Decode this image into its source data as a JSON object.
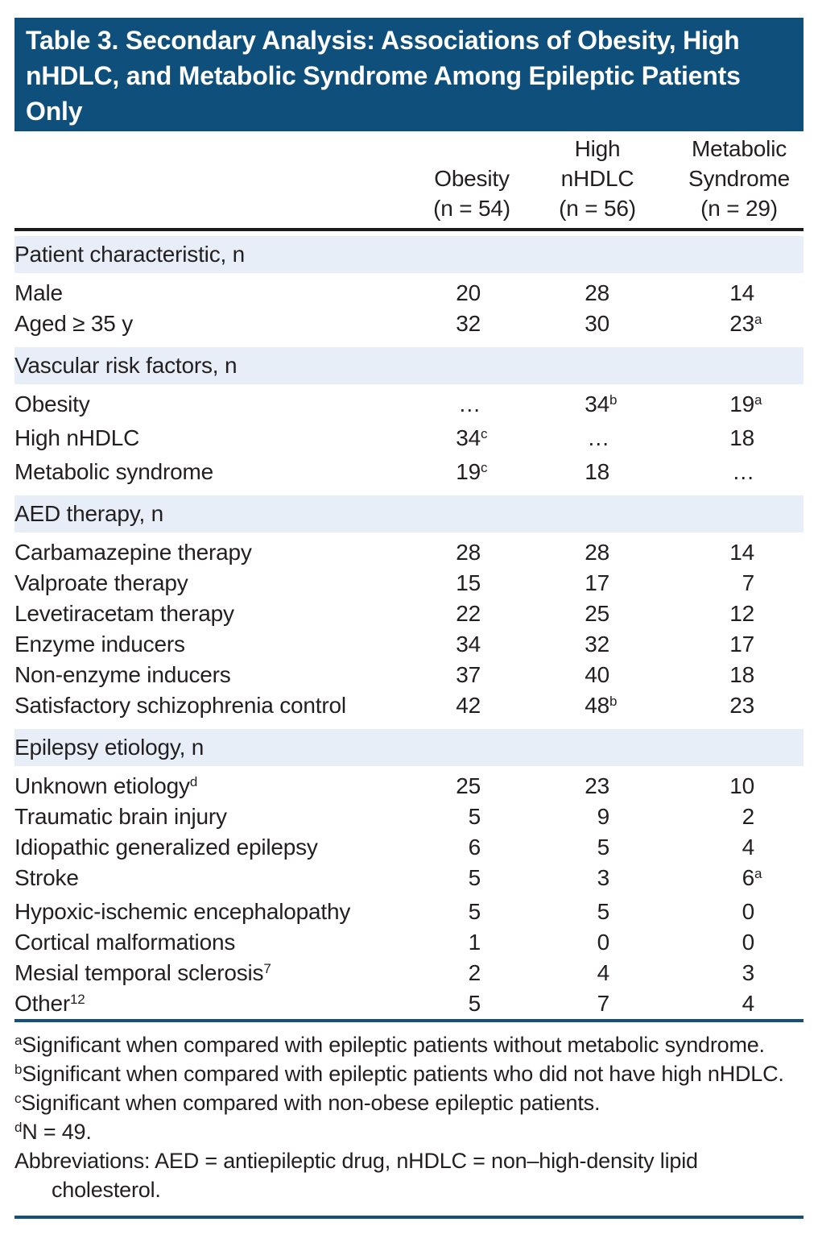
{
  "title": "Table 3. Secondary Analysis: Associations of Obesity, High nHDLC, and Metabolic Syndrome Among Epileptic Patients Only",
  "title_lines": [
    "Table 3. Secondary Analysis: Associations of Obesity, High",
    "nHDLC, and Metabolic Syndrome Among Epileptic Patients",
    "Only"
  ],
  "columns": [
    {
      "lines": [
        "Obesity"
      ],
      "n": "(n = 54)"
    },
    {
      "lines": [
        "High",
        "nHDLC"
      ],
      "n": "(n = 56)"
    },
    {
      "lines": [
        "Metabolic",
        "Syndrome"
      ],
      "n": "(n = 29)"
    }
  ],
  "sections": [
    {
      "header": "Patient characteristic, n",
      "rows": [
        {
          "label": "Male",
          "values": [
            {
              "text": "20"
            },
            {
              "text": "28"
            },
            {
              "text": "14"
            }
          ]
        },
        {
          "label": "Aged ≥ 35 y",
          "values": [
            {
              "text": "32"
            },
            {
              "text": "30"
            },
            {
              "text": "23",
              "sup": "a"
            }
          ]
        }
      ]
    },
    {
      "header": "Vascular risk factors, n",
      "rows": [
        {
          "label": "Obesity",
          "values": [
            {
              "text": "…"
            },
            {
              "text": "34",
              "sup": "b"
            },
            {
              "text": "19",
              "sup": "a"
            }
          ]
        },
        {
          "label": "High nHDLC",
          "values": [
            {
              "text": "34",
              "sup": "c"
            },
            {
              "text": "…"
            },
            {
              "text": "18"
            }
          ]
        },
        {
          "label": "Metabolic syndrome",
          "values": [
            {
              "text": "19",
              "sup": "c"
            },
            {
              "text": "18"
            },
            {
              "text": "…"
            }
          ]
        }
      ]
    },
    {
      "header": "AED therapy, n",
      "rows": [
        {
          "label": "Carbamazepine therapy",
          "values": [
            {
              "text": "28"
            },
            {
              "text": "28"
            },
            {
              "text": "14"
            }
          ]
        },
        {
          "label": "Valproate therapy",
          "values": [
            {
              "text": "15"
            },
            {
              "text": "17"
            },
            {
              "text": "7"
            }
          ]
        },
        {
          "label": "Levetiracetam therapy",
          "values": [
            {
              "text": "22"
            },
            {
              "text": "25"
            },
            {
              "text": "12"
            }
          ]
        },
        {
          "label": "Enzyme inducers",
          "values": [
            {
              "text": "34"
            },
            {
              "text": "32"
            },
            {
              "text": "17"
            }
          ]
        },
        {
          "label": "Non-enzyme inducers",
          "values": [
            {
              "text": "37"
            },
            {
              "text": "40"
            },
            {
              "text": "18"
            }
          ]
        },
        {
          "label": "Satisfactory schizophrenia control",
          "values": [
            {
              "text": "42"
            },
            {
              "text": "48",
              "sup": "b"
            },
            {
              "text": "23"
            }
          ]
        }
      ]
    },
    {
      "header": "Epilepsy etiology, n",
      "rows": [
        {
          "label": "Unknown etiology",
          "label_sup": "d",
          "values": [
            {
              "text": "25"
            },
            {
              "text": "23"
            },
            {
              "text": "10"
            }
          ]
        },
        {
          "label": "Traumatic brain injury",
          "values": [
            {
              "text": "5"
            },
            {
              "text": "9"
            },
            {
              "text": "2"
            }
          ]
        },
        {
          "label": "Idiopathic generalized epilepsy",
          "values": [
            {
              "text": "6"
            },
            {
              "text": "5"
            },
            {
              "text": "4"
            }
          ]
        },
        {
          "label": "Stroke",
          "values": [
            {
              "text": "5"
            },
            {
              "text": "3"
            },
            {
              "text": "6",
              "sup": "a"
            }
          ]
        },
        {
          "label": "Hypoxic-ischemic encephalopathy",
          "values": [
            {
              "text": "5"
            },
            {
              "text": "5"
            },
            {
              "text": "0"
            }
          ]
        },
        {
          "label": "Cortical malformations",
          "values": [
            {
              "text": "1"
            },
            {
              "text": "0"
            },
            {
              "text": "0"
            }
          ]
        },
        {
          "label": "Mesial temporal sclerosis",
          "label_sup": "7",
          "values": [
            {
              "text": "2"
            },
            {
              "text": "4"
            },
            {
              "text": "3"
            }
          ]
        },
        {
          "label": "Other",
          "label_sup": "12",
          "values": [
            {
              "text": "5"
            },
            {
              "text": "7"
            },
            {
              "text": "4"
            }
          ]
        }
      ]
    }
  ],
  "footnotes": [
    {
      "sup": "a",
      "text": "Significant when compared with epileptic patients without metabolic syndrome."
    },
    {
      "sup": "b",
      "text": "Significant when compared with epileptic patients who did not have high nHDLC."
    },
    {
      "sup": "c",
      "text": "Significant when compared with non-obese epileptic patients."
    },
    {
      "sup": "d",
      "text": "N = 49."
    },
    {
      "sup": "",
      "text": "Abbreviations: AED = antiepileptic drug, nHDLC = non–high-density lipid cholesterol."
    }
  ],
  "colors": {
    "banner_bg": "#0f4f7c",
    "banner_text": "#ffffff",
    "section_band_bg": "#e8eef8",
    "body_text": "#231f20",
    "header_rule": "#1a1a1a",
    "blue_rule": "#15507c"
  }
}
